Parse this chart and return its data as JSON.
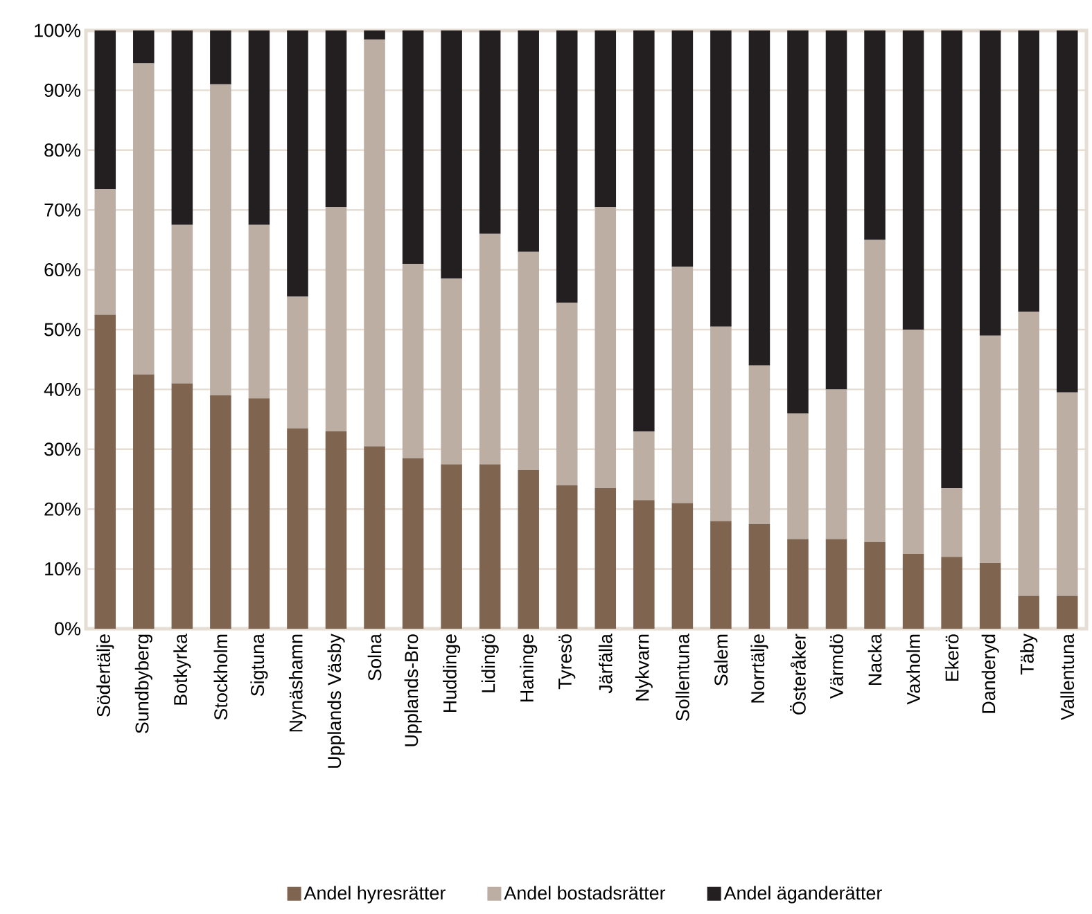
{
  "chart_data": {
    "type": "bar",
    "stacked": true,
    "categories": [
      "Södertälje",
      "Sundbyberg",
      "Botkyrka",
      "Stockholm",
      "Sigtuna",
      "Nynäshamn",
      "Upplands Väsby",
      "Solna",
      "Upplands-Bro",
      "Huddinge",
      "Lidingö",
      "Haninge",
      "Tyresö",
      "Järfälla",
      "Nykvarn",
      "Sollentuna",
      "Salem",
      "Norrtälje",
      "Österåker",
      "Värmdö",
      "Nacka",
      "Vaxholm",
      "Ekerö",
      "Danderyd",
      "Täby",
      "Vallentuna"
    ],
    "series": [
      {
        "name": "Andel hyresrätter",
        "color": "#7f6450",
        "values": [
          52.5,
          42.5,
          41,
          39,
          38.5,
          33.5,
          33,
          30.5,
          28.5,
          27.5,
          27.5,
          26.5,
          24,
          23.5,
          21.5,
          21,
          18,
          17.5,
          15,
          15,
          14.5,
          12.5,
          12,
          11,
          5.5,
          5.5
        ]
      },
      {
        "name": "Andel bostadsrätter",
        "color": "#bcaea3",
        "values": [
          21,
          52,
          26.5,
          52,
          29,
          22,
          37.5,
          68,
          32.5,
          31,
          38.5,
          36.5,
          30.5,
          47,
          11.5,
          39.5,
          32.5,
          26.5,
          21,
          25,
          50.5,
          37.5,
          11.5,
          38,
          47.5,
          34
        ]
      },
      {
        "name": "Andel äganderätter",
        "color": "#231f20",
        "values": [
          26.5,
          5.5,
          32.5,
          9,
          32.5,
          44.5,
          29.5,
          1.5,
          39,
          41.5,
          34,
          37,
          45.5,
          29.5,
          67,
          39.5,
          49.5,
          56,
          64,
          60,
          35,
          50,
          76.5,
          51,
          47,
          60.5
        ]
      }
    ],
    "ylim": [
      0,
      100
    ],
    "yticks": [
      {
        "value": 0,
        "label": "0%"
      },
      {
        "value": 10,
        "label": "10%"
      },
      {
        "value": 20,
        "label": "20%"
      },
      {
        "value": 30,
        "label": "30%"
      },
      {
        "value": 40,
        "label": "40%"
      },
      {
        "value": 50,
        "label": "50%"
      },
      {
        "value": 60,
        "label": "60%"
      },
      {
        "value": 70,
        "label": "70%"
      },
      {
        "value": 80,
        "label": "80%"
      },
      {
        "value": 90,
        "label": "90%"
      },
      {
        "value": 100,
        "label": "100%"
      }
    ],
    "grid": "y",
    "legend": "bottom"
  }
}
